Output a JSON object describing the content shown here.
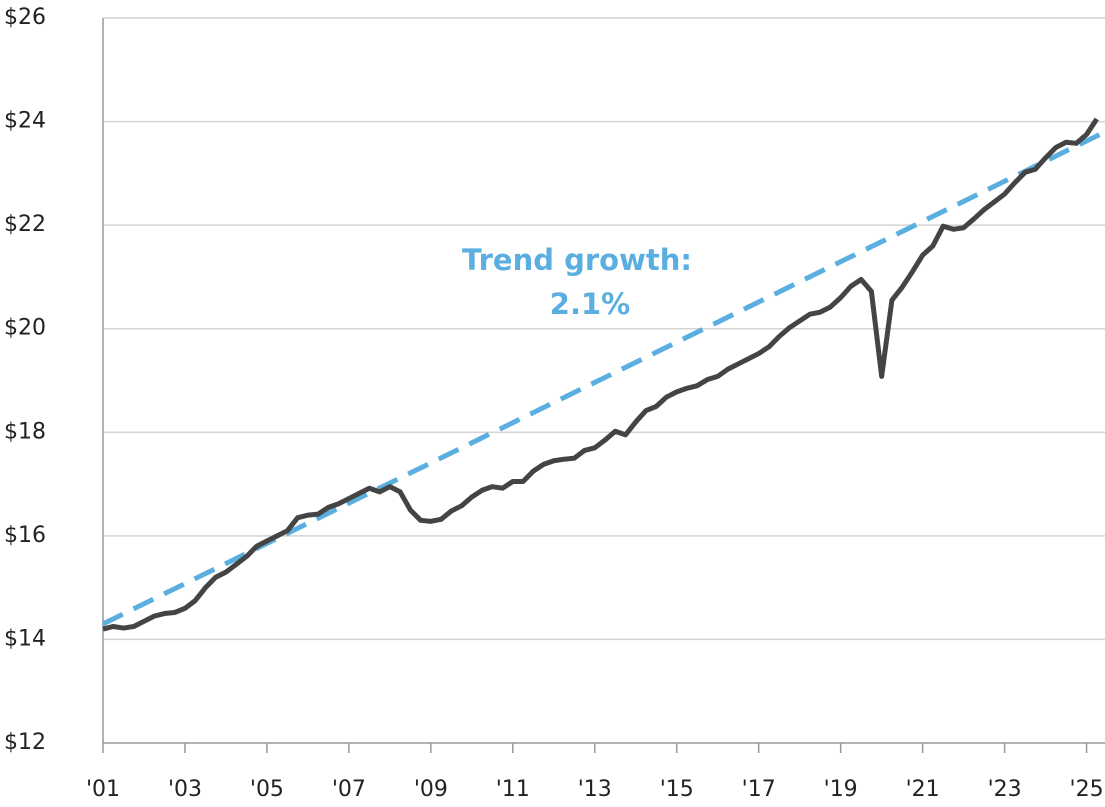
{
  "chart_data": {
    "type": "line",
    "annotation": [
      "Trend growth:",
      "2.1%"
    ],
    "annotation_color": "#5aafe0",
    "xlim": [
      2001,
      2025.45
    ],
    "xticks": [
      {
        "value": 2001,
        "label": "'01"
      },
      {
        "value": 2003,
        "label": "'03"
      },
      {
        "value": 2005,
        "label": "'05"
      },
      {
        "value": 2007,
        "label": "'07"
      },
      {
        "value": 2009,
        "label": "'09"
      },
      {
        "value": 2011,
        "label": "'11"
      },
      {
        "value": 2013,
        "label": "'13"
      },
      {
        "value": 2015,
        "label": "'15"
      },
      {
        "value": 2017,
        "label": "'17"
      },
      {
        "value": 2019,
        "label": "'19"
      },
      {
        "value": 2021,
        "label": "'21"
      },
      {
        "value": 2023,
        "label": "'23"
      },
      {
        "value": 2025,
        "label": "'25"
      }
    ],
    "ylim": [
      12,
      26
    ],
    "yticks": [
      {
        "value": 12,
        "label": "$12"
      },
      {
        "value": 14,
        "label": "$14"
      },
      {
        "value": 16,
        "label": "$16"
      },
      {
        "value": 18,
        "label": "$18"
      },
      {
        "value": 20,
        "label": "$20"
      },
      {
        "value": 22,
        "label": "$22"
      },
      {
        "value": 24,
        "label": "$24"
      },
      {
        "value": 26,
        "label": "$26"
      }
    ],
    "grid": true,
    "series": [
      {
        "color": "#444444",
        "dashed": false,
        "x": [
          2001,
          2001.25,
          2001.5,
          2001.75,
          2002,
          2002.25,
          2002.5,
          2002.75,
          2003,
          2003.25,
          2003.5,
          2003.75,
          2004,
          2004.25,
          2004.5,
          2004.75,
          2005,
          2005.25,
          2005.5,
          2005.75,
          2006,
          2006.25,
          2006.5,
          2006.75,
          2007,
          2007.25,
          2007.5,
          2007.75,
          2008,
          2008.25,
          2008.5,
          2008.75,
          2009,
          2009.25,
          2009.5,
          2009.75,
          2010,
          2010.25,
          2010.5,
          2010.75,
          2011,
          2011.25,
          2011.5,
          2011.75,
          2012,
          2012.25,
          2012.5,
          2012.75,
          2013,
          2013.25,
          2013.5,
          2013.75,
          2014,
          2014.25,
          2014.5,
          2014.75,
          2015,
          2015.25,
          2015.5,
          2015.75,
          2016,
          2016.25,
          2016.5,
          2016.75,
          2017,
          2017.25,
          2017.5,
          2017.75,
          2018,
          2018.25,
          2018.5,
          2018.75,
          2019,
          2019.25,
          2019.5,
          2019.75,
          2020,
          2020.25,
          2020.5,
          2020.75,
          2021,
          2021.25,
          2021.5,
          2021.75,
          2022,
          2022.25,
          2022.5,
          2022.75,
          2023,
          2023.25,
          2023.5,
          2023.75,
          2024,
          2024.25,
          2024.5,
          2024.75,
          2025,
          2025.25
        ],
        "values": [
          14.2,
          14.25,
          14.22,
          14.25,
          14.35,
          14.45,
          14.5,
          14.52,
          14.6,
          14.75,
          15.0,
          15.2,
          15.3,
          15.45,
          15.6,
          15.8,
          15.9,
          16.0,
          16.1,
          16.35,
          16.4,
          16.42,
          16.55,
          16.62,
          16.72,
          16.82,
          16.92,
          16.85,
          16.95,
          16.85,
          16.5,
          16.3,
          16.28,
          16.32,
          16.48,
          16.58,
          16.75,
          16.88,
          16.95,
          16.92,
          17.05,
          17.05,
          17.25,
          17.38,
          17.45,
          17.48,
          17.5,
          17.65,
          17.7,
          17.85,
          18.02,
          17.95,
          18.2,
          18.42,
          18.5,
          18.68,
          18.78,
          18.85,
          18.9,
          19.02,
          19.08,
          19.22,
          19.32,
          19.42,
          19.52,
          19.65,
          19.85,
          20.02,
          20.15,
          20.28,
          20.32,
          20.42,
          20.6,
          20.82,
          20.95,
          20.72,
          19.08,
          20.55,
          20.8,
          21.1,
          21.42,
          21.6,
          21.98,
          21.92,
          21.95,
          22.12,
          22.3,
          22.45,
          22.6,
          22.82,
          23.02,
          23.08,
          23.3,
          23.5,
          23.6,
          23.58,
          23.75,
          24.05
        ]
      },
      {
        "color": "#5aafe0",
        "dashed": true,
        "x": [
          2001,
          2025.45
        ],
        "values": [
          14.3,
          23.8
        ]
      }
    ]
  }
}
